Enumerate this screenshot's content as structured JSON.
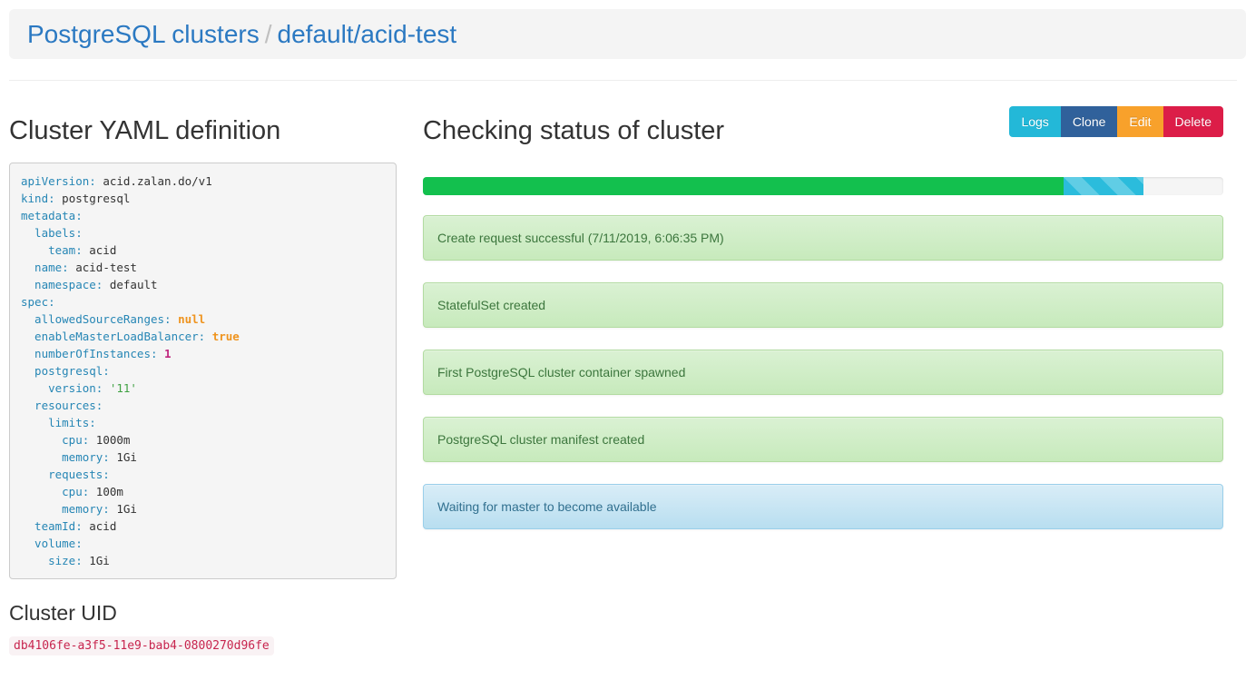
{
  "breadcrumb": {
    "root": "PostgreSQL clusters",
    "separator": "/",
    "current": "default/acid-test"
  },
  "yaml": {
    "title": "Cluster YAML definition",
    "lines": [
      {
        "key": "apiVersion:",
        "value": " acid.zalan.do/v1",
        "type": "plain"
      },
      {
        "key": "kind:",
        "value": " postgresql",
        "type": "plain"
      },
      {
        "key": "metadata:",
        "value": "",
        "type": "plain"
      },
      {
        "key": "  labels:",
        "value": "",
        "type": "plain"
      },
      {
        "key": "    team:",
        "value": " acid",
        "type": "plain"
      },
      {
        "key": "  name:",
        "value": " acid-test",
        "type": "plain"
      },
      {
        "key": "  namespace:",
        "value": " default",
        "type": "plain"
      },
      {
        "key": "spec:",
        "value": "",
        "type": "plain"
      },
      {
        "key": "  allowedSourceRanges:",
        "value": " null",
        "type": "literal"
      },
      {
        "key": "  enableMasterLoadBalancer:",
        "value": " true",
        "type": "literal"
      },
      {
        "key": "  numberOfInstances:",
        "value": " 1",
        "type": "number"
      },
      {
        "key": "  postgresql:",
        "value": "",
        "type": "plain"
      },
      {
        "key": "    version:",
        "value": " '11'",
        "type": "string"
      },
      {
        "key": "  resources:",
        "value": "",
        "type": "plain"
      },
      {
        "key": "    limits:",
        "value": "",
        "type": "plain"
      },
      {
        "key": "      cpu:",
        "value": " 1000m",
        "type": "plain"
      },
      {
        "key": "      memory:",
        "value": " 1Gi",
        "type": "plain"
      },
      {
        "key": "    requests:",
        "value": "",
        "type": "plain"
      },
      {
        "key": "      cpu:",
        "value": " 100m",
        "type": "plain"
      },
      {
        "key": "      memory:",
        "value": " 1Gi",
        "type": "plain"
      },
      {
        "key": "  teamId:",
        "value": " acid",
        "type": "plain"
      },
      {
        "key": "  volume:",
        "value": "",
        "type": "plain"
      },
      {
        "key": "    size:",
        "value": " 1Gi",
        "type": "plain"
      }
    ]
  },
  "uid": {
    "title": "Cluster UID",
    "value": "db4106fe-a3f5-11e9-bab4-0800270d96fe"
  },
  "status": {
    "title": "Checking status of cluster",
    "buttons": [
      {
        "name": "logs",
        "label": "Logs",
        "color": "#23b8d8"
      },
      {
        "name": "clone",
        "label": "Clone",
        "color": "#30619b"
      },
      {
        "name": "edit",
        "label": "Edit",
        "color": "#f8a12b"
      },
      {
        "name": "delete",
        "label": "Delete",
        "color": "#dc1d48"
      }
    ],
    "progress": {
      "success_pct": 80,
      "info_pct": 10
    },
    "messages": [
      {
        "text": "Create request successful (7/11/2019, 6:06:35 PM)",
        "type": "success"
      },
      {
        "text": "StatefulSet created",
        "type": "success"
      },
      {
        "text": "First PostgreSQL cluster container spawned",
        "type": "success"
      },
      {
        "text": "PostgreSQL cluster manifest created",
        "type": "success"
      },
      {
        "text": "Waiting for master to become available",
        "type": "info"
      }
    ],
    "colors": {
      "progress_success": "#13c04e",
      "progress_info": "#2bbcdc",
      "alert_success_text": "#3c763d",
      "alert_info_text": "#31708f",
      "link_blue": "#2b79c2"
    }
  }
}
